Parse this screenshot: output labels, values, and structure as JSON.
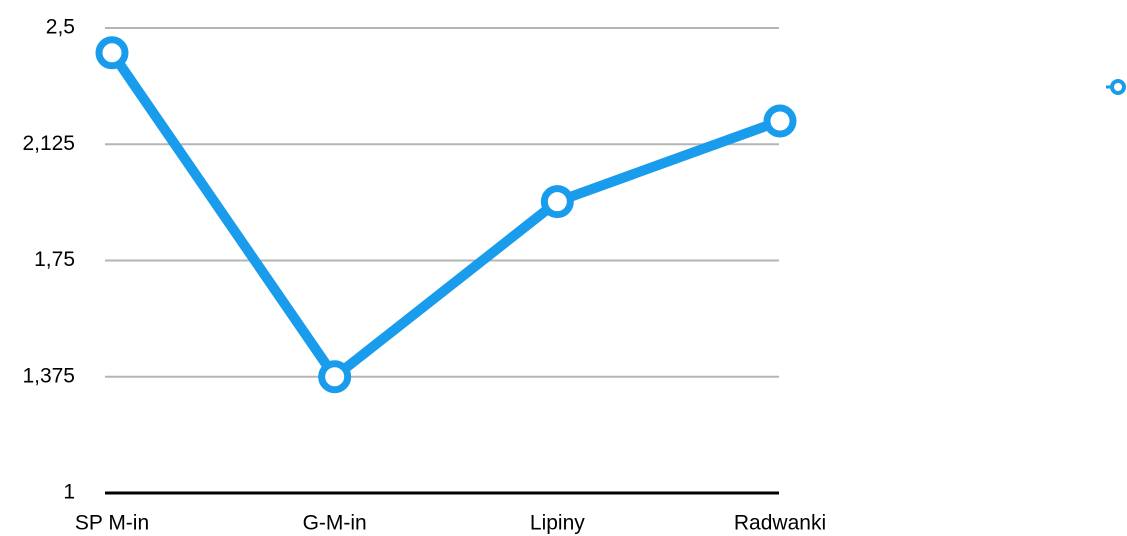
{
  "chart_data": {
    "type": "line",
    "categories": [
      "SP M-in",
      "G-M-in",
      "Lipiny",
      "Radwanki"
    ],
    "series": [
      {
        "color": "#1a9cec",
        "values": [
          2.42,
          1.375,
          1.94,
          2.2
        ]
      }
    ],
    "ylim": [
      1,
      2.5
    ],
    "yticks": [
      1,
      {
        "value": 1.375,
        "label": "1,375"
      },
      {
        "value": 1.75,
        "label": "1,75"
      },
      {
        "value": 2.125,
        "label": "2,125"
      },
      {
        "value": 2.5,
        "label": "2,5"
      }
    ],
    "grid": true,
    "legend": "right"
  }
}
